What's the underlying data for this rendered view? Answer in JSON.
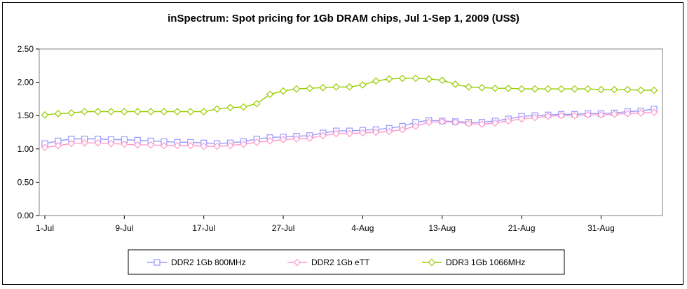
{
  "chart_data": {
    "type": "line",
    "title": "inSpectrum: Spot pricing for 1Gb DRAM chips, Jul 1-Sep 1, 2009 (US$)",
    "ylim": [
      0,
      2.5
    ],
    "yticks": [
      "0.00",
      "0.50",
      "1.00",
      "1.50",
      "2.00",
      "2.50"
    ],
    "xtick_labels": [
      "1-Jul",
      "9-Jul",
      "17-Jul",
      "27-Jul",
      "4-Aug",
      "13-Aug",
      "21-Aug",
      "31-Aug"
    ],
    "xtick_positions": [
      0,
      6,
      12,
      18,
      24,
      30,
      36,
      42
    ],
    "grid": false,
    "legend_position": "bottom",
    "series": [
      {
        "name": "DDR2 1Gb 800MHz",
        "color": "#9999ff",
        "marker": "square",
        "values": [
          1.08,
          1.12,
          1.15,
          1.15,
          1.15,
          1.14,
          1.14,
          1.13,
          1.12,
          1.11,
          1.1,
          1.1,
          1.09,
          1.08,
          1.09,
          1.11,
          1.15,
          1.17,
          1.18,
          1.19,
          1.2,
          1.24,
          1.27,
          1.27,
          1.28,
          1.29,
          1.31,
          1.34,
          1.4,
          1.43,
          1.42,
          1.41,
          1.4,
          1.4,
          1.42,
          1.45,
          1.49,
          1.5,
          1.51,
          1.52,
          1.52,
          1.53,
          1.53,
          1.54,
          1.56,
          1.57,
          1.6
        ]
      },
      {
        "name": "DDR2 1Gb eTT",
        "color": "#ff99cc",
        "marker": "diamond",
        "values": [
          1.02,
          1.05,
          1.08,
          1.09,
          1.09,
          1.08,
          1.07,
          1.06,
          1.06,
          1.05,
          1.05,
          1.05,
          1.04,
          1.04,
          1.05,
          1.07,
          1.1,
          1.12,
          1.14,
          1.15,
          1.16,
          1.2,
          1.23,
          1.23,
          1.24,
          1.25,
          1.26,
          1.29,
          1.34,
          1.4,
          1.41,
          1.4,
          1.38,
          1.37,
          1.39,
          1.42,
          1.45,
          1.47,
          1.49,
          1.5,
          1.5,
          1.51,
          1.51,
          1.52,
          1.53,
          1.54,
          1.55
        ]
      },
      {
        "name": "DDR3 1Gb 1066MHz",
        "color": "#99cc00",
        "marker": "diamond",
        "values": [
          1.51,
          1.53,
          1.54,
          1.56,
          1.56,
          1.56,
          1.56,
          1.56,
          1.56,
          1.56,
          1.56,
          1.56,
          1.56,
          1.6,
          1.62,
          1.63,
          1.68,
          1.82,
          1.87,
          1.9,
          1.91,
          1.92,
          1.93,
          1.93,
          1.96,
          2.02,
          2.05,
          2.06,
          2.06,
          2.05,
          2.03,
          1.97,
          1.93,
          1.92,
          1.91,
          1.91,
          1.9,
          1.9,
          1.9,
          1.9,
          1.9,
          1.9,
          1.89,
          1.89,
          1.89,
          1.88,
          1.88
        ]
      }
    ]
  }
}
